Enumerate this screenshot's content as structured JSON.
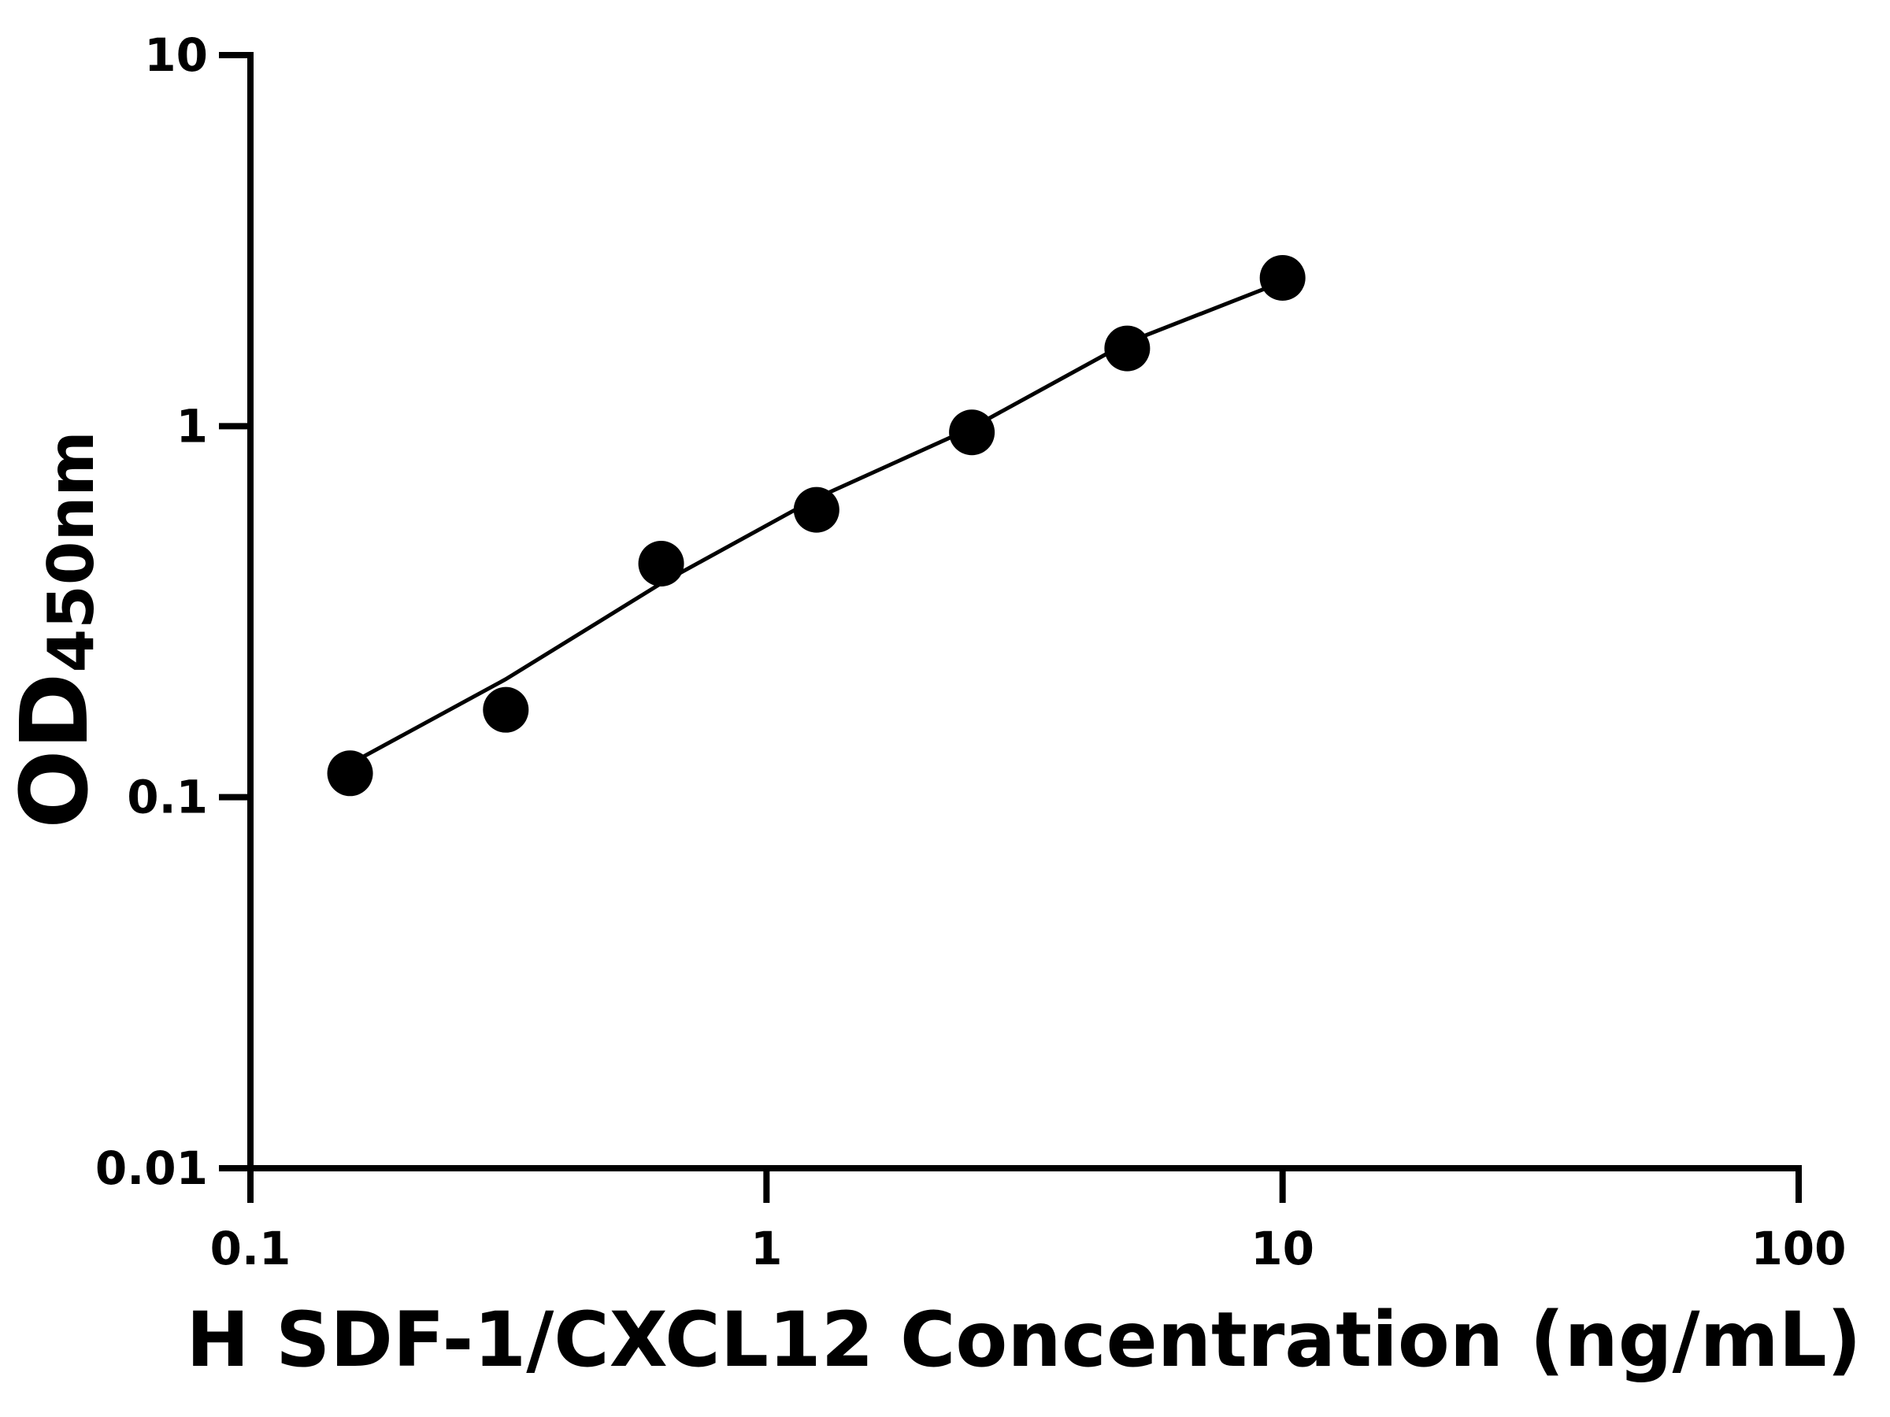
{
  "chart_data": {
    "type": "scatter",
    "xlabel": "H SDF-1/CXCL12 Concentration (ng/mL)",
    "ylabel": "OD",
    "ylabel_subscript": "450nm",
    "x": [
      0.156,
      0.3125,
      0.625,
      1.25,
      2.5,
      5,
      10
    ],
    "values": [
      0.116,
      0.172,
      0.426,
      0.595,
      0.962,
      1.62,
      2.51
    ],
    "fit": {
      "x": [
        0.156,
        0.3125,
        0.625,
        1.25,
        2.5,
        5,
        10
      ],
      "values": [
        0.123,
        0.208,
        0.377,
        0.64,
        0.99,
        1.68,
        2.45
      ]
    },
    "color": "#000000",
    "xscale": "log",
    "yscale": "log",
    "xlim": [
      0.1,
      100
    ],
    "ylim": [
      0.01,
      10
    ],
    "xticks": [
      0.1,
      1,
      10,
      100
    ],
    "yticks": [
      0.01,
      0.1,
      1,
      10
    ],
    "grid": false
  }
}
